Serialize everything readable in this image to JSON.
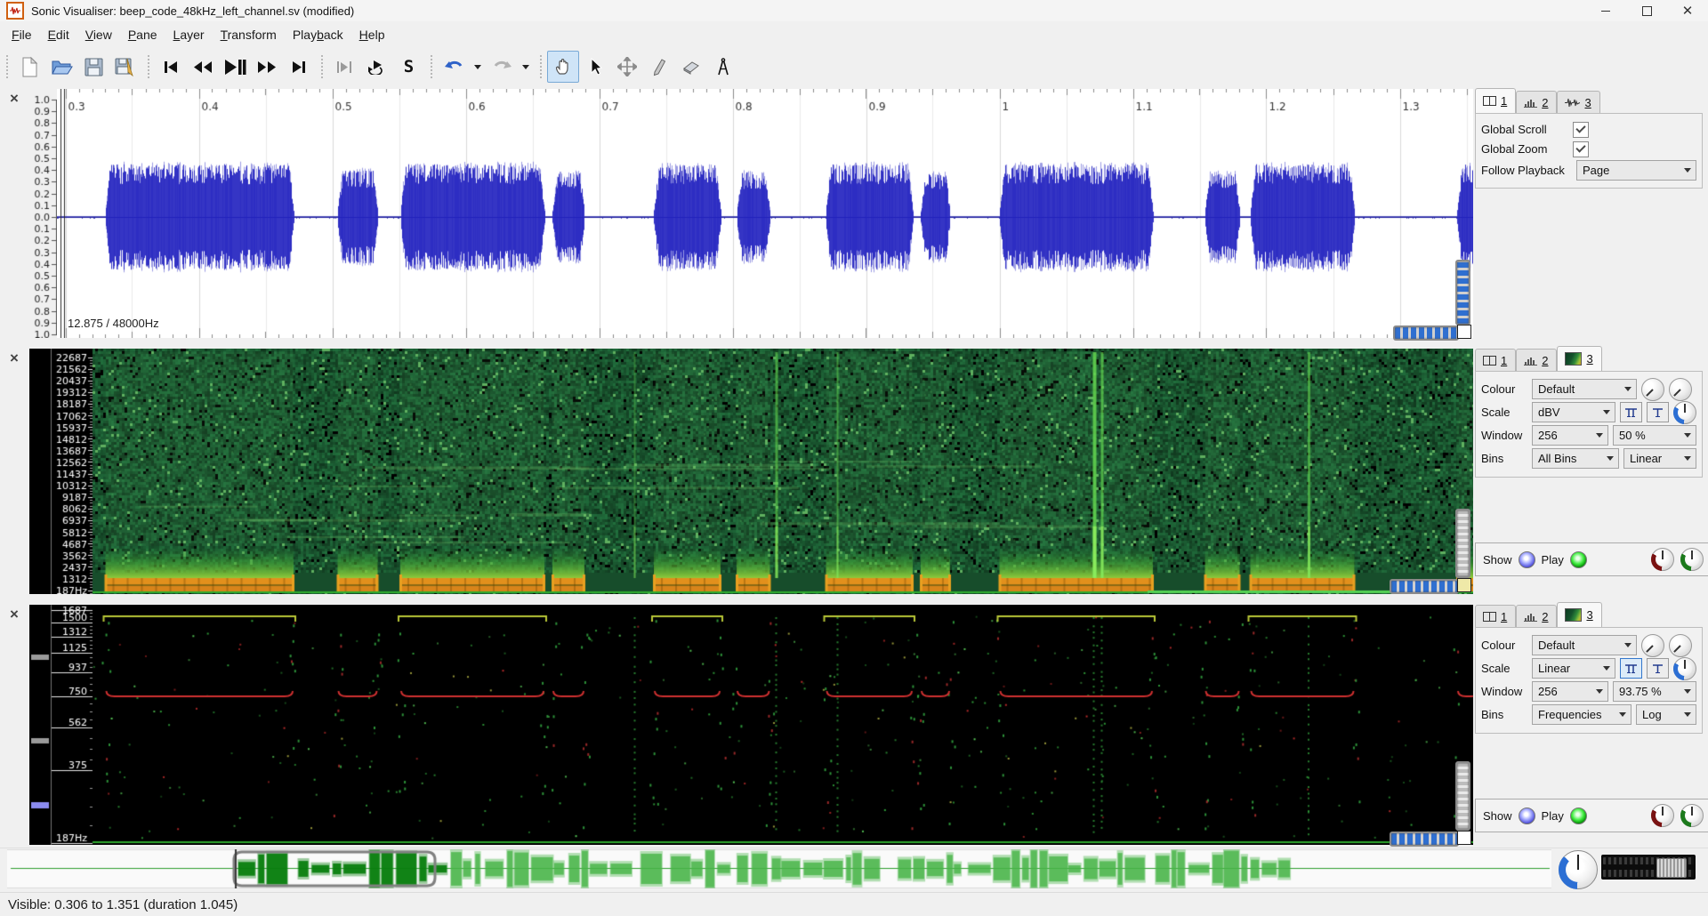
{
  "window": {
    "title": "Sonic Visualiser: beep_code_48kHz_left_channel.sv (modified)"
  },
  "panes": {
    "close_glyph": "×"
  },
  "menu": {
    "items": [
      {
        "label": "File",
        "u": 0
      },
      {
        "label": "Edit",
        "u": 0
      },
      {
        "label": "View",
        "u": 0
      },
      {
        "label": "Pane",
        "u": 0
      },
      {
        "label": "Layer",
        "u": 0
      },
      {
        "label": "Transform",
        "u": 0
      },
      {
        "label": "Playback",
        "u": 4
      },
      {
        "label": "Help",
        "u": 0
      }
    ]
  },
  "toolbar": {
    "solo_glyph": "S",
    "buttons": [
      "new-session",
      "open",
      "save-session",
      "save-session-as",
      "rewind-to-start",
      "rewind",
      "play-pause",
      "fast-forward",
      "fast-forward-to-end",
      "play-selection",
      "loop-playback",
      "solo-pane",
      "undo",
      "redo",
      "navigate-tool",
      "select-tool",
      "edit-tool",
      "draw-tool",
      "erase-tool",
      "measure-tool"
    ]
  },
  "tabs": {
    "one": "1",
    "two": "2",
    "three": "3"
  },
  "stack1": {
    "global_scroll": "Global Scroll",
    "global_zoom": "Global Zoom",
    "follow_playback": "Follow Playback",
    "follow_playback_value": "Page",
    "global_scroll_checked": true,
    "global_zoom_checked": true
  },
  "stack2": {
    "colour_label": "Colour",
    "colour": "Default",
    "scale_label": "Scale",
    "scale": "dBV",
    "window_label": "Window",
    "window_size": "256",
    "window_overlap": "50 %",
    "bins_label": "Bins",
    "bins": "All Bins",
    "bins_scale": "Linear",
    "show_label": "Show",
    "play_label": "Play"
  },
  "stack3": {
    "colour_label": "Colour",
    "colour": "Default",
    "scale_label": "Scale",
    "scale": "Linear",
    "window_label": "Window",
    "window_size": "256",
    "window_overlap": "93.75 %",
    "bins_label": "Bins",
    "bins": "Frequencies",
    "bins_scale": "Log",
    "show_label": "Show",
    "play_label": "Play"
  },
  "pane1": {
    "info": "12.875 / 48000Hz",
    "time_ticks": [
      "0.3",
      "0.4",
      "0.5",
      "0.6",
      "0.7",
      "0.8",
      "0.9",
      "1",
      "1.1",
      "1.2",
      "1.3"
    ],
    "amp_ticks": [
      "1.0",
      "0.9",
      "0.8",
      "0.7",
      "0.6",
      "0.5",
      "0.4",
      "0.3",
      "0.2",
      "0.1",
      "0.0",
      "0.1",
      "0.2",
      "0.3",
      "0.4",
      "0.5",
      "0.6",
      "0.7",
      "0.8",
      "0.9",
      "1.0"
    ]
  },
  "pane2": {
    "freq_ticks": [
      "22687",
      "21562",
      "20437",
      "19312",
      "18187",
      "17062",
      "15937",
      "14812",
      "13687",
      "12562",
      "11437",
      "10312",
      "9187",
      "8062",
      "6937",
      "5812",
      "4687",
      "3562",
      "2437",
      "1312",
      "187Hz"
    ]
  },
  "pane3": {
    "freq_ticks": [
      {
        "f": 1687,
        "label": "1687"
      },
      {
        "f": 1500,
        "label": "1500"
      },
      {
        "f": 1312,
        "label": "1312"
      },
      {
        "f": 1125,
        "label": "1125"
      },
      {
        "f": 937,
        "label": "937"
      },
      {
        "f": 750,
        "label": "750"
      },
      {
        "f": 562,
        "label": "562"
      },
      {
        "f": 375,
        "label": "375"
      },
      {
        "f": 187,
        "label": "187Hz"
      }
    ]
  },
  "statusbar": {
    "text": "Visible: 0.306 to 1.351 (duration 1.045)"
  },
  "audio": {
    "sample_rate_hz": 48000,
    "duration_s": 12.875,
    "visible_start_s": 0.306,
    "visible_end_s": 1.351,
    "beep_fundamental_hz": 750,
    "bursts": [
      [
        0.33,
        0.471,
        0.45
      ],
      [
        0.504,
        0.534,
        0.4
      ],
      [
        0.551,
        0.659,
        0.45
      ],
      [
        0.665,
        0.689,
        0.38
      ],
      [
        0.741,
        0.791,
        0.44
      ],
      [
        0.803,
        0.828,
        0.38
      ],
      [
        0.87,
        0.935,
        0.45
      ],
      [
        0.941,
        0.963,
        0.38
      ],
      [
        1.0,
        1.115,
        0.45
      ],
      [
        1.154,
        1.18,
        0.38
      ],
      [
        1.188,
        1.266,
        0.45
      ],
      [
        1.343,
        1.36,
        0.45
      ]
    ],
    "spectral_line_times_s": [
      0.726,
      0.832,
      0.878,
      1.07,
      1.076,
      1.231
    ]
  }
}
